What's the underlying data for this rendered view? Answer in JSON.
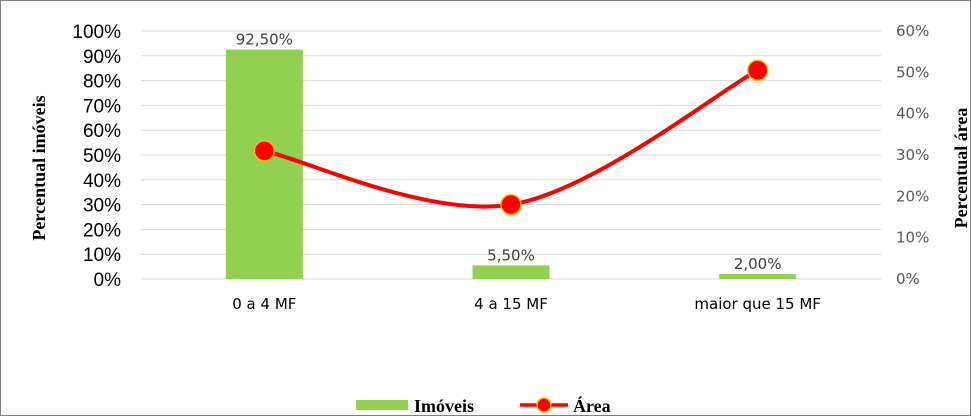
{
  "chart_data": {
    "type": "bar",
    "categories": [
      "0 a 4 MF",
      "4 a 15 MF",
      "maior que 15 MF"
    ],
    "series": [
      {
        "name": "Imóveis",
        "type": "bar",
        "axis": "left",
        "values": [
          92.5,
          5.5,
          2.0
        ],
        "data_labels": [
          "92,50%",
          "5,50%",
          "2,00%"
        ],
        "color": "#92d050"
      },
      {
        "name": "Área",
        "type": "line",
        "axis": "right",
        "smooth": true,
        "values": [
          31,
          18,
          50.5
        ],
        "color": "#ff0000",
        "marker_color": "#ff0000"
      }
    ],
    "y_left": {
      "label": "Percentual imóveis",
      "ylim": [
        0,
        100
      ],
      "ticks": [
        "0%",
        "10%",
        "20%",
        "30%",
        "40%",
        "50%",
        "60%",
        "70%",
        "80%",
        "90%",
        "100%"
      ]
    },
    "y_right": {
      "label": "Percentual área",
      "ylim": [
        0,
        60
      ],
      "ticks": [
        "0%",
        "10%",
        "20%",
        "30%",
        "40%",
        "50%",
        "60%"
      ]
    },
    "grid": true,
    "grid_color": "#d9d9d9",
    "legend": {
      "position": "bottom",
      "entries": [
        "Imóveis",
        "Área"
      ]
    }
  }
}
